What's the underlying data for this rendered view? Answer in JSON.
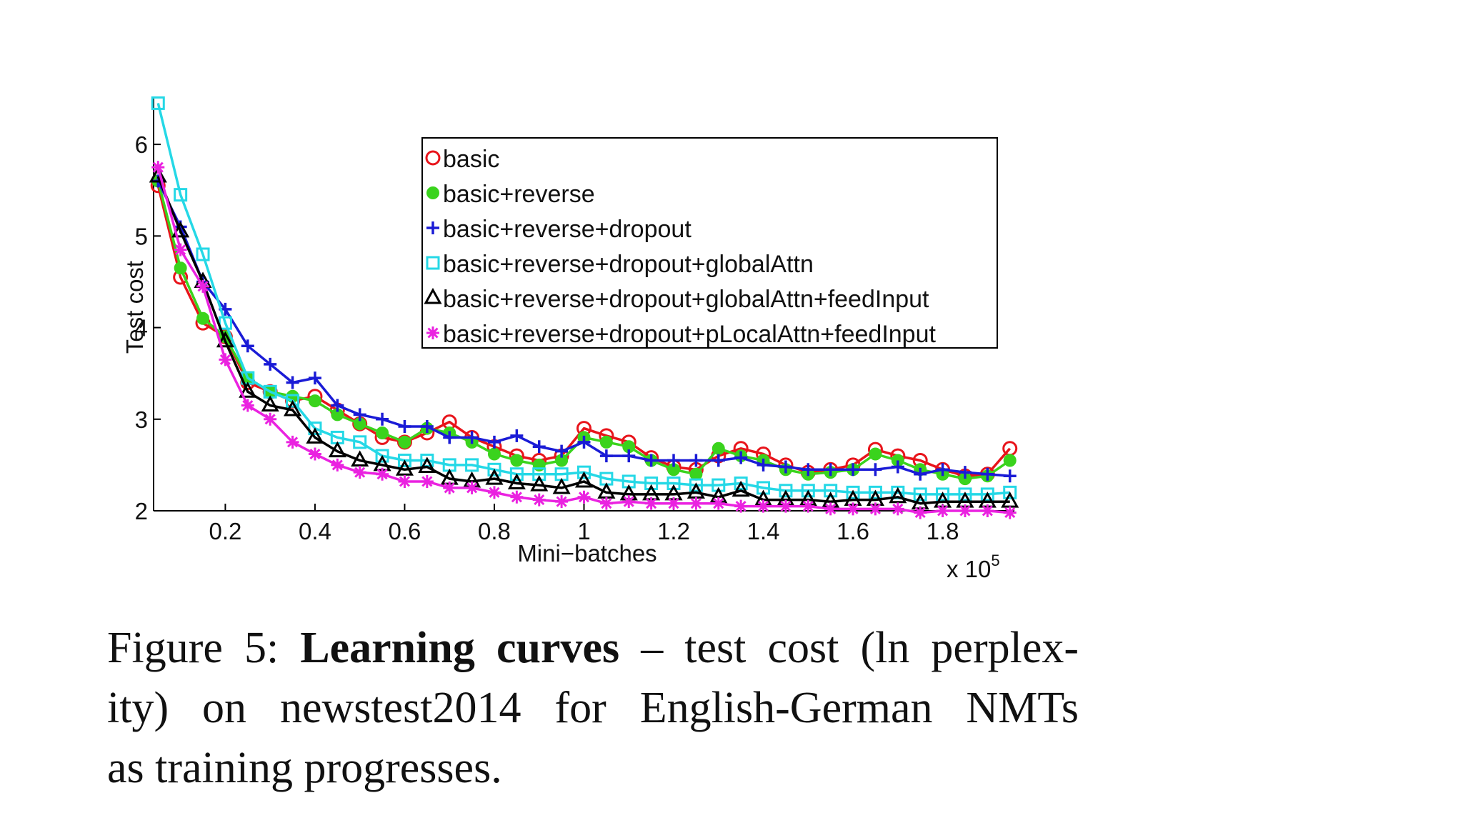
{
  "chart_data": {
    "type": "line",
    "xlabel": "Mini−batches",
    "ylabel": "Test cost",
    "x_multiplier_label": "x 10",
    "x_multiplier_exponent": "5",
    "xlim": [
      0.04,
      1.96
    ],
    "ylim": [
      2,
      6.5
    ],
    "xticks": [
      0.2,
      0.4,
      0.6,
      0.8,
      1,
      1.2,
      1.4,
      1.6,
      1.8
    ],
    "xtick_labels": [
      "0.2",
      "0.4",
      "0.6",
      "0.8",
      "1",
      "1.2",
      "1.4",
      "1.6",
      "1.8"
    ],
    "yticks": [
      2,
      3,
      4,
      5,
      6
    ],
    "ytick_labels": [
      "2",
      "3",
      "4",
      "5",
      "6"
    ],
    "legend_position": "top-right",
    "series": [
      {
        "name": "basic",
        "color": "#e8141b",
        "marker": "circle",
        "x": [
          0.05,
          0.1,
          0.15,
          0.2,
          0.25,
          0.3,
          0.35,
          0.4,
          0.45,
          0.5,
          0.55,
          0.6,
          0.65,
          0.7,
          0.75,
          0.8,
          0.85,
          0.9,
          0.95,
          1.0,
          1.05,
          1.1,
          1.15,
          1.2,
          1.25,
          1.3,
          1.35,
          1.4,
          1.45,
          1.5,
          1.55,
          1.6,
          1.65,
          1.7,
          1.75,
          1.8,
          1.85,
          1.9,
          1.95
        ],
        "y": [
          5.55,
          4.55,
          4.05,
          3.9,
          3.4,
          3.3,
          3.2,
          3.25,
          3.1,
          2.95,
          2.8,
          2.75,
          2.85,
          2.97,
          2.8,
          2.7,
          2.6,
          2.55,
          2.6,
          2.9,
          2.82,
          2.75,
          2.58,
          2.48,
          2.45,
          2.6,
          2.68,
          2.62,
          2.5,
          2.42,
          2.45,
          2.5,
          2.67,
          2.6,
          2.55,
          2.45,
          2.38,
          2.4,
          2.68
        ]
      },
      {
        "name": "basic+reverse",
        "color": "#3ad31d",
        "marker": "filled-circle",
        "x": [
          0.05,
          0.1,
          0.15,
          0.2,
          0.25,
          0.3,
          0.35,
          0.4,
          0.45,
          0.5,
          0.55,
          0.6,
          0.65,
          0.7,
          0.75,
          0.8,
          0.85,
          0.9,
          0.95,
          1.0,
          1.05,
          1.1,
          1.15,
          1.2,
          1.25,
          1.3,
          1.35,
          1.4,
          1.45,
          1.5,
          1.55,
          1.6,
          1.65,
          1.7,
          1.75,
          1.8,
          1.85,
          1.9,
          1.95
        ],
        "y": [
          5.6,
          4.65,
          4.1,
          3.9,
          3.45,
          3.3,
          3.25,
          3.2,
          3.05,
          2.95,
          2.85,
          2.75,
          2.9,
          2.85,
          2.75,
          2.62,
          2.55,
          2.5,
          2.55,
          2.8,
          2.75,
          2.7,
          2.55,
          2.45,
          2.4,
          2.68,
          2.6,
          2.55,
          2.45,
          2.4,
          2.42,
          2.45,
          2.62,
          2.55,
          2.45,
          2.4,
          2.35,
          2.38,
          2.55
        ]
      },
      {
        "name": "basic+reverse+dropout",
        "color": "#1a1bd6",
        "marker": "plus",
        "x": [
          0.05,
          0.1,
          0.15,
          0.2,
          0.25,
          0.3,
          0.35,
          0.4,
          0.45,
          0.5,
          0.55,
          0.6,
          0.65,
          0.7,
          0.75,
          0.8,
          0.85,
          0.9,
          0.95,
          1.0,
          1.05,
          1.1,
          1.15,
          1.2,
          1.25,
          1.3,
          1.35,
          1.4,
          1.45,
          1.5,
          1.55,
          1.6,
          1.65,
          1.7,
          1.75,
          1.8,
          1.85,
          1.9,
          1.95
        ],
        "y": [
          5.6,
          5.1,
          4.5,
          4.2,
          3.8,
          3.6,
          3.4,
          3.45,
          3.15,
          3.05,
          3.0,
          2.92,
          2.92,
          2.8,
          2.8,
          2.75,
          2.82,
          2.7,
          2.65,
          2.75,
          2.6,
          2.6,
          2.55,
          2.55,
          2.55,
          2.55,
          2.58,
          2.5,
          2.48,
          2.45,
          2.45,
          2.45,
          2.45,
          2.48,
          2.4,
          2.45,
          2.42,
          2.4,
          2.38
        ]
      },
      {
        "name": "basic+reverse+dropout+globalAttn",
        "color": "#25d8e6",
        "marker": "square",
        "x": [
          0.05,
          0.1,
          0.15,
          0.2,
          0.25,
          0.3,
          0.35,
          0.4,
          0.45,
          0.5,
          0.55,
          0.6,
          0.65,
          0.7,
          0.75,
          0.8,
          0.85,
          0.9,
          0.95,
          1.0,
          1.05,
          1.1,
          1.15,
          1.2,
          1.25,
          1.3,
          1.35,
          1.4,
          1.45,
          1.5,
          1.55,
          1.6,
          1.65,
          1.7,
          1.75,
          1.8,
          1.85,
          1.9,
          1.95
        ],
        "y": [
          6.45,
          5.45,
          4.8,
          4.05,
          3.45,
          3.3,
          3.2,
          2.9,
          2.8,
          2.75,
          2.6,
          2.55,
          2.55,
          2.5,
          2.5,
          2.45,
          2.4,
          2.4,
          2.4,
          2.42,
          2.35,
          2.32,
          2.3,
          2.3,
          2.28,
          2.28,
          2.3,
          2.25,
          2.22,
          2.22,
          2.22,
          2.2,
          2.2,
          2.2,
          2.18,
          2.18,
          2.18,
          2.18,
          2.2
        ]
      },
      {
        "name": "basic+reverse+dropout+globalAttn+feedInput",
        "color": "#000000",
        "marker": "triangle",
        "x": [
          0.05,
          0.1,
          0.15,
          0.2,
          0.25,
          0.3,
          0.35,
          0.4,
          0.45,
          0.5,
          0.55,
          0.6,
          0.65,
          0.7,
          0.75,
          0.8,
          0.85,
          0.9,
          0.95,
          1.0,
          1.05,
          1.1,
          1.15,
          1.2,
          1.25,
          1.3,
          1.35,
          1.4,
          1.45,
          1.5,
          1.55,
          1.6,
          1.65,
          1.7,
          1.75,
          1.8,
          1.85,
          1.9,
          1.95
        ],
        "y": [
          5.65,
          5.05,
          4.5,
          3.85,
          3.3,
          3.15,
          3.1,
          2.8,
          2.65,
          2.55,
          2.5,
          2.45,
          2.48,
          2.35,
          2.32,
          2.35,
          2.3,
          2.28,
          2.25,
          2.32,
          2.2,
          2.18,
          2.18,
          2.18,
          2.2,
          2.15,
          2.22,
          2.12,
          2.12,
          2.12,
          2.1,
          2.12,
          2.12,
          2.15,
          2.08,
          2.1,
          2.1,
          2.1,
          2.1
        ]
      },
      {
        "name": "basic+reverse+dropout+pLocalAttn+feedInput",
        "color": "#ea22e0",
        "marker": "star",
        "x": [
          0.05,
          0.1,
          0.15,
          0.2,
          0.25,
          0.3,
          0.35,
          0.4,
          0.45,
          0.5,
          0.55,
          0.6,
          0.65,
          0.7,
          0.75,
          0.8,
          0.85,
          0.9,
          0.95,
          1.0,
          1.05,
          1.1,
          1.15,
          1.2,
          1.25,
          1.3,
          1.35,
          1.4,
          1.45,
          1.5,
          1.55,
          1.6,
          1.65,
          1.7,
          1.75,
          1.8,
          1.85,
          1.9,
          1.95
        ],
        "y": [
          5.75,
          4.85,
          4.45,
          3.65,
          3.15,
          3.0,
          2.75,
          2.62,
          2.5,
          2.42,
          2.4,
          2.32,
          2.32,
          2.25,
          2.25,
          2.2,
          2.15,
          2.12,
          2.1,
          2.15,
          2.08,
          2.1,
          2.08,
          2.08,
          2.08,
          2.08,
          2.05,
          2.05,
          2.05,
          2.05,
          2.02,
          2.02,
          2.02,
          2.02,
          1.98,
          2.0,
          2.0,
          2.0,
          1.98
        ]
      }
    ]
  },
  "caption": {
    "prefix": "Figure 5: ",
    "bold": "Learning curves",
    "line1_rest": " – test cost (ln perplex-",
    "line2": "ity) on newstest2014 for English-German NMTs",
    "line3": "as training progresses."
  }
}
